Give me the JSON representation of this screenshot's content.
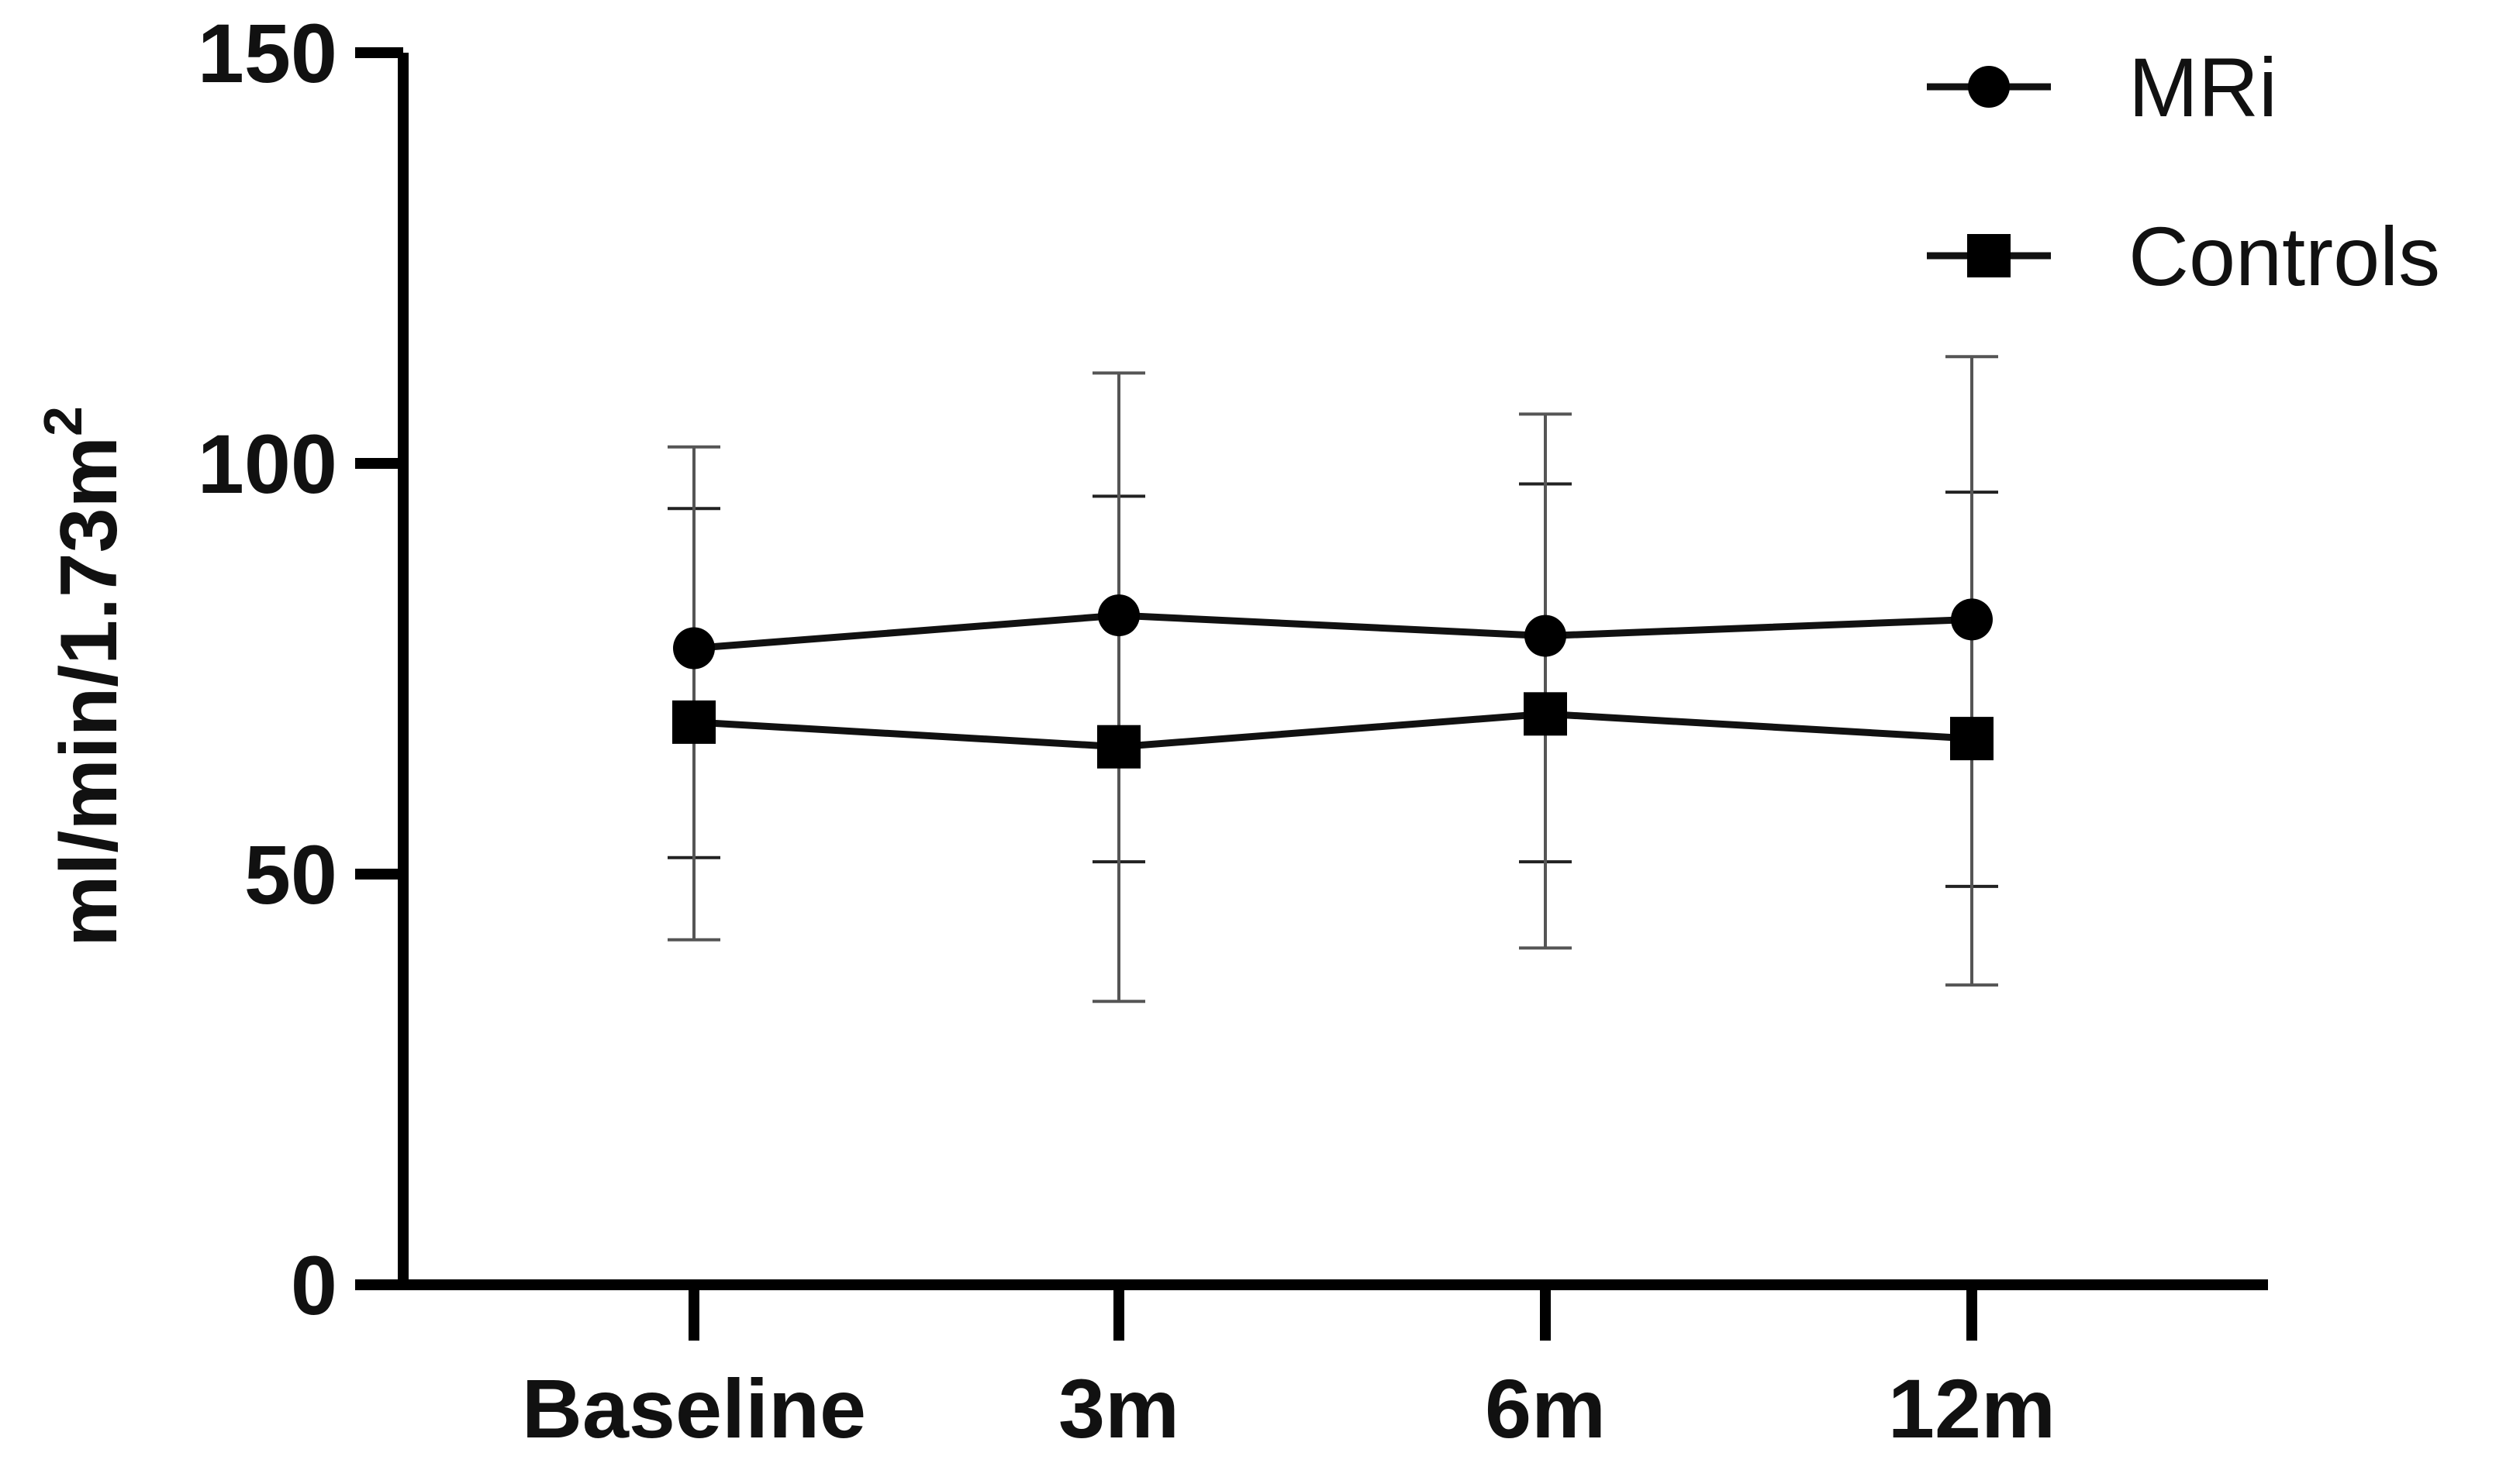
{
  "chart_data": {
    "type": "line",
    "title": "",
    "xlabel": "",
    "ylabel": "ml/min/1.73m",
    "ylabel_superscript": "2",
    "ylim": [
      0,
      150
    ],
    "yticks": [
      "0",
      "50",
      "100",
      "150"
    ],
    "ytick_values": [
      0,
      50,
      100,
      150
    ],
    "categories": [
      "Baseline",
      "3m",
      "6m",
      "12m"
    ],
    "grid": false,
    "legend_position": "top-right",
    "series": [
      {
        "name": "MRi",
        "marker": "circle",
        "values": [
          77.5,
          81.5,
          79,
          81
        ],
        "err_upper": [
          94.5,
          96,
          97.5,
          96.5
        ],
        "err_lower": [
          52,
          51.5,
          51.5,
          48.5
        ]
      },
      {
        "name": "Controls",
        "marker": "square",
        "values": [
          68.5,
          65.5,
          69.5,
          66.5
        ],
        "err_upper": [
          102,
          111,
          106,
          113
        ],
        "err_lower": [
          42,
          34.5,
          41,
          36.5
        ]
      }
    ],
    "colors": {
      "line": "#111111",
      "marker": "#000000",
      "axis": "#000000"
    }
  }
}
